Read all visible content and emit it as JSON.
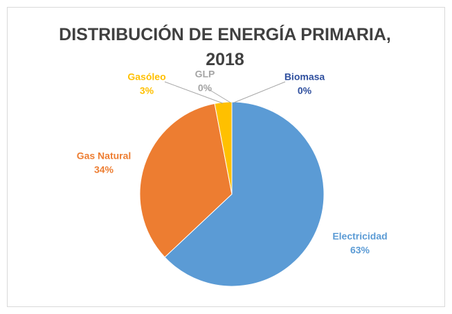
{
  "chart_data": {
    "type": "pie",
    "title": "DISTRIBUCIÓN DE ENERGÍA PRIMARIA, 2018",
    "categories": [
      "Biomasa",
      "Electricidad",
      "Gas Natural",
      "Gasóleo",
      "GLP"
    ],
    "values": [
      0,
      63,
      34,
      3,
      0
    ],
    "value_labels": [
      "0%",
      "63%",
      "34%",
      "3%",
      "0%"
    ],
    "colors": [
      "#2f4f9e",
      "#5b9bd5",
      "#ed7d31",
      "#ffc000",
      "#a5a5a5"
    ]
  }
}
